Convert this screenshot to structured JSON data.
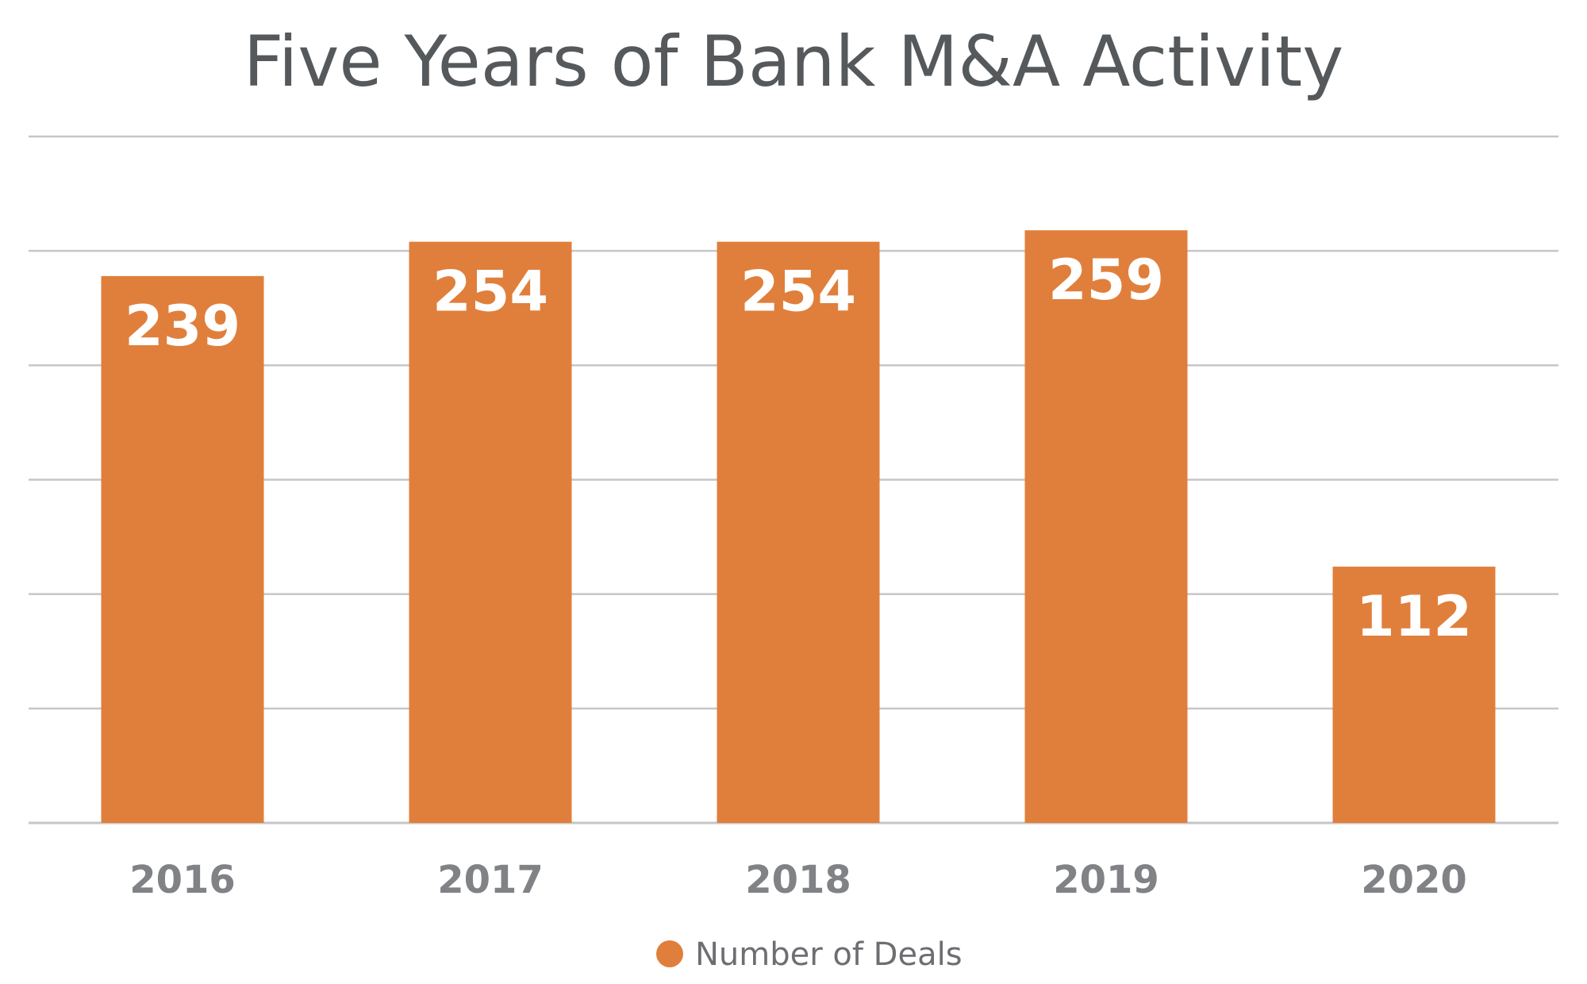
{
  "chart_data": {
    "type": "bar",
    "title": "Five Years of Bank M&A Activity",
    "categories": [
      "2016",
      "2017",
      "2018",
      "2019",
      "2020"
    ],
    "series": [
      {
        "name": "Number of Deals",
        "values": [
          239,
          254,
          254,
          259,
          112
        ]
      }
    ],
    "ylim": [
      0,
      300
    ],
    "ytick_step": 50,
    "grid": true,
    "show_value_labels": true,
    "legend": {
      "position": "bottom",
      "labels": [
        "Number of Deals"
      ]
    }
  },
  "colors": {
    "bar": "#e07f3b",
    "grid": "#c6c6c6",
    "title": "#55595c",
    "tick": "#808285",
    "value_label": "#ffffff",
    "legend_text": "#6d6e71"
  }
}
